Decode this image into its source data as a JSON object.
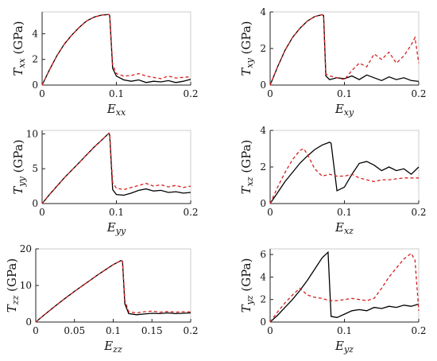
{
  "chart_data": [
    {
      "type": "line",
      "panel": "txx",
      "ylabel_main": "T",
      "ylabel_sub": "xx",
      "ylabel_unit": "(GPa)",
      "xlabel_main": "E",
      "xlabel_sub": "xx",
      "xlim": [
        0,
        0.2
      ],
      "ylim": [
        0,
        5.7
      ],
      "xticks": [
        0,
        0.1,
        0.2
      ],
      "xtick_labels": [
        "0",
        "0.1",
        "0.2"
      ],
      "yticks": [
        0,
        2,
        4
      ],
      "ytick_labels": [
        "0",
        "2",
        "4"
      ],
      "series": [
        {
          "style": "solid",
          "color": "#000000",
          "x": [
            0,
            0.01,
            0.02,
            0.03,
            0.04,
            0.05,
            0.06,
            0.07,
            0.08,
            0.09,
            0.091,
            0.095,
            0.1,
            0.11,
            0.12,
            0.13,
            0.14,
            0.15,
            0.16,
            0.17,
            0.18,
            0.19,
            0.2
          ],
          "y": [
            0,
            1.2,
            2.3,
            3.2,
            3.9,
            4.5,
            5.0,
            5.3,
            5.45,
            5.5,
            5.4,
            1.3,
            0.7,
            0.4,
            0.3,
            0.4,
            0.2,
            0.3,
            0.25,
            0.35,
            0.2,
            0.3,
            0.45
          ]
        },
        {
          "style": "dashed",
          "color": "#d62020",
          "x": [
            0,
            0.01,
            0.02,
            0.03,
            0.04,
            0.05,
            0.06,
            0.07,
            0.08,
            0.09,
            0.091,
            0.095,
            0.1,
            0.11,
            0.12,
            0.13,
            0.14,
            0.15,
            0.16,
            0.17,
            0.18,
            0.19,
            0.2
          ],
          "y": [
            0,
            1.2,
            2.3,
            3.2,
            3.9,
            4.5,
            5.0,
            5.3,
            5.45,
            5.5,
            5.4,
            1.6,
            0.9,
            0.7,
            0.75,
            0.9,
            0.7,
            0.6,
            0.5,
            0.7,
            0.55,
            0.6,
            0.65
          ]
        }
      ]
    },
    {
      "type": "line",
      "panel": "txy",
      "ylabel_main": "T",
      "ylabel_sub": "xy",
      "ylabel_unit": "(GPa)",
      "xlabel_main": "E",
      "xlabel_sub": "xy",
      "xlim": [
        0,
        0.2
      ],
      "ylim": [
        0,
        4
      ],
      "xticks": [
        0,
        0.1,
        0.2
      ],
      "xtick_labels": [
        "0",
        "0.1",
        "0.2"
      ],
      "yticks": [
        0,
        2,
        4
      ],
      "ytick_labels": [
        "0",
        "2",
        "4"
      ],
      "series": [
        {
          "style": "solid",
          "color": "#000000",
          "x": [
            0,
            0.01,
            0.02,
            0.03,
            0.04,
            0.05,
            0.06,
            0.07,
            0.072,
            0.075,
            0.08,
            0.09,
            0.1,
            0.11,
            0.12,
            0.13,
            0.14,
            0.15,
            0.16,
            0.17,
            0.18,
            0.19,
            0.2
          ],
          "y": [
            0,
            1.0,
            1.9,
            2.6,
            3.1,
            3.5,
            3.75,
            3.85,
            3.8,
            0.5,
            0.3,
            0.4,
            0.35,
            0.5,
            0.3,
            0.55,
            0.4,
            0.25,
            0.45,
            0.3,
            0.4,
            0.25,
            0.2
          ]
        },
        {
          "style": "dashed",
          "color": "#d62020",
          "x": [
            0,
            0.01,
            0.02,
            0.03,
            0.04,
            0.05,
            0.06,
            0.07,
            0.072,
            0.075,
            0.08,
            0.09,
            0.1,
            0.11,
            0.12,
            0.13,
            0.14,
            0.15,
            0.16,
            0.17,
            0.18,
            0.19,
            0.195,
            0.2
          ],
          "y": [
            0,
            1.0,
            1.9,
            2.6,
            3.1,
            3.5,
            3.75,
            3.85,
            3.8,
            0.6,
            0.5,
            0.4,
            0.3,
            0.8,
            1.2,
            1.0,
            1.7,
            1.4,
            1.8,
            1.2,
            1.6,
            2.2,
            2.6,
            1.2
          ]
        }
      ]
    },
    {
      "type": "line",
      "panel": "tyy",
      "ylabel_main": "T",
      "ylabel_sub": "yy",
      "ylabel_unit": "(GPa)",
      "xlabel_main": "E",
      "xlabel_sub": "yy",
      "xlim": [
        0,
        0.2
      ],
      "ylim": [
        0,
        10.5
      ],
      "xticks": [
        0,
        0.1,
        0.2
      ],
      "xtick_labels": [
        "0",
        "0.1",
        "0.2"
      ],
      "yticks": [
        0,
        5,
        10
      ],
      "ytick_labels": [
        "0",
        "5",
        "10"
      ],
      "series": [
        {
          "style": "solid",
          "color": "#000000",
          "x": [
            0,
            0.01,
            0.02,
            0.03,
            0.04,
            0.05,
            0.06,
            0.07,
            0.08,
            0.09,
            0.091,
            0.095,
            0.1,
            0.11,
            0.12,
            0.13,
            0.14,
            0.15,
            0.16,
            0.17,
            0.18,
            0.19,
            0.2
          ],
          "y": [
            0,
            1.3,
            2.5,
            3.7,
            4.8,
            5.9,
            7.0,
            8.1,
            9.1,
            10.1,
            9.8,
            2.0,
            1.3,
            1.2,
            1.5,
            1.9,
            2.1,
            1.8,
            1.9,
            1.6,
            1.7,
            1.5,
            1.6
          ]
        },
        {
          "style": "dashed",
          "color": "#d62020",
          "x": [
            0,
            0.01,
            0.02,
            0.03,
            0.04,
            0.05,
            0.06,
            0.07,
            0.08,
            0.09,
            0.091,
            0.095,
            0.1,
            0.11,
            0.12,
            0.13,
            0.14,
            0.15,
            0.16,
            0.17,
            0.18,
            0.19,
            0.2
          ],
          "y": [
            0,
            1.3,
            2.5,
            3.7,
            4.8,
            5.9,
            7.0,
            8.1,
            9.1,
            10.1,
            9.8,
            3.0,
            2.2,
            2.0,
            2.3,
            2.6,
            2.9,
            2.5,
            2.7,
            2.4,
            2.6,
            2.3,
            2.5
          ]
        }
      ]
    },
    {
      "type": "line",
      "panel": "txz",
      "ylabel_main": "T",
      "ylabel_sub": "xz",
      "ylabel_unit": "(GPa)",
      "xlabel_main": "E",
      "xlabel_sub": "xz",
      "xlim": [
        0,
        0.2
      ],
      "ylim": [
        0,
        4
      ],
      "xticks": [
        0,
        0.1,
        0.2
      ],
      "xtick_labels": [
        "0",
        "0.1",
        "0.2"
      ],
      "yticks": [
        0,
        2,
        4
      ],
      "ytick_labels": [
        "0",
        "2",
        "4"
      ],
      "series": [
        {
          "style": "solid",
          "color": "#000000",
          "x": [
            0,
            0.01,
            0.02,
            0.03,
            0.04,
            0.05,
            0.06,
            0.07,
            0.08,
            0.082,
            0.09,
            0.1,
            0.11,
            0.12,
            0.13,
            0.14,
            0.15,
            0.16,
            0.17,
            0.18,
            0.19,
            0.2
          ],
          "y": [
            0,
            0.6,
            1.2,
            1.7,
            2.2,
            2.6,
            2.95,
            3.2,
            3.35,
            3.3,
            0.7,
            0.9,
            1.6,
            2.2,
            2.3,
            2.1,
            1.8,
            2.0,
            1.8,
            1.9,
            1.6,
            2.0
          ]
        },
        {
          "style": "dashed",
          "color": "#d62020",
          "x": [
            0,
            0.01,
            0.02,
            0.03,
            0.04,
            0.045,
            0.05,
            0.06,
            0.07,
            0.08,
            0.09,
            0.1,
            0.11,
            0.12,
            0.13,
            0.14,
            0.15,
            0.16,
            0.17,
            0.18,
            0.19,
            0.2
          ],
          "y": [
            0,
            0.9,
            1.7,
            2.4,
            2.9,
            3.0,
            2.7,
            1.9,
            1.5,
            1.6,
            1.5,
            1.5,
            1.6,
            1.4,
            1.3,
            1.2,
            1.3,
            1.3,
            1.35,
            1.4,
            1.4,
            1.4
          ]
        }
      ]
    },
    {
      "type": "line",
      "panel": "tzz",
      "ylabel_main": "T",
      "ylabel_sub": "zz",
      "ylabel_unit": "(GPa)",
      "xlabel_main": "E",
      "xlabel_sub": "zz",
      "xlim": [
        0,
        0.2
      ],
      "ylim": [
        0,
        20
      ],
      "xticks": [
        0,
        0.05,
        0.1,
        0.15,
        0.2
      ],
      "xtick_labels": [
        "0",
        "0.05",
        "0.1",
        "0.15",
        "0.2"
      ],
      "yticks": [
        0,
        10,
        20
      ],
      "ytick_labels": [
        "0",
        "10",
        "20"
      ],
      "series": [
        {
          "style": "solid",
          "color": "#000000",
          "x": [
            0,
            0.01,
            0.02,
            0.03,
            0.04,
            0.05,
            0.06,
            0.07,
            0.08,
            0.09,
            0.1,
            0.11,
            0.112,
            0.115,
            0.12,
            0.13,
            0.14,
            0.15,
            0.16,
            0.17,
            0.18,
            0.19,
            0.2
          ],
          "y": [
            0,
            1.8,
            3.5,
            5.2,
            6.8,
            8.4,
            9.9,
            11.4,
            12.9,
            14.3,
            15.7,
            16.8,
            16.6,
            5.0,
            2.3,
            2.0,
            2.2,
            2.4,
            2.3,
            2.5,
            2.3,
            2.4,
            2.5
          ]
        },
        {
          "style": "dashed",
          "color": "#d62020",
          "x": [
            0,
            0.01,
            0.02,
            0.03,
            0.04,
            0.05,
            0.06,
            0.07,
            0.08,
            0.09,
            0.1,
            0.11,
            0.112,
            0.115,
            0.12,
            0.13,
            0.14,
            0.15,
            0.16,
            0.17,
            0.18,
            0.19,
            0.2
          ],
          "y": [
            0,
            1.8,
            3.5,
            5.2,
            6.8,
            8.4,
            9.9,
            11.4,
            12.9,
            14.3,
            15.7,
            16.8,
            16.6,
            6.0,
            2.8,
            2.5,
            2.8,
            3.0,
            2.7,
            2.9,
            2.7,
            2.8,
            2.8
          ]
        }
      ]
    },
    {
      "type": "line",
      "panel": "tyz",
      "ylabel_main": "T",
      "ylabel_sub": "yz",
      "ylabel_unit": "(GPa)",
      "xlabel_main": "E",
      "xlabel_sub": "yz",
      "xlim": [
        0,
        0.2
      ],
      "ylim": [
        0,
        6.5
      ],
      "xticks": [
        0,
        0.1,
        0.2
      ],
      "xtick_labels": [
        "0",
        "0.1",
        "0.2"
      ],
      "yticks": [
        0,
        2,
        4,
        6
      ],
      "ytick_labels": [
        "0",
        "2",
        "4",
        "6"
      ],
      "series": [
        {
          "style": "solid",
          "color": "#000000",
          "x": [
            0,
            0.01,
            0.02,
            0.03,
            0.04,
            0.05,
            0.06,
            0.07,
            0.078,
            0.082,
            0.09,
            0.1,
            0.11,
            0.12,
            0.13,
            0.14,
            0.15,
            0.16,
            0.17,
            0.18,
            0.19,
            0.2
          ],
          "y": [
            0,
            0.6,
            1.3,
            2.0,
            2.8,
            3.7,
            4.7,
            5.7,
            6.2,
            0.5,
            0.4,
            0.7,
            1.0,
            1.1,
            1.0,
            1.3,
            1.2,
            1.4,
            1.3,
            1.5,
            1.4,
            1.6
          ]
        },
        {
          "style": "dashed",
          "color": "#d62020",
          "x": [
            0,
            0.01,
            0.02,
            0.03,
            0.04,
            0.05,
            0.06,
            0.07,
            0.08,
            0.09,
            0.1,
            0.11,
            0.12,
            0.13,
            0.14,
            0.15,
            0.16,
            0.17,
            0.18,
            0.19,
            0.195,
            0.2
          ],
          "y": [
            0,
            0.9,
            1.7,
            2.4,
            3.0,
            2.4,
            2.2,
            2.1,
            1.9,
            1.9,
            2.0,
            2.1,
            2.0,
            1.9,
            2.1,
            3.0,
            4.0,
            4.8,
            5.6,
            6.1,
            5.5,
            1.0
          ]
        }
      ]
    }
  ]
}
